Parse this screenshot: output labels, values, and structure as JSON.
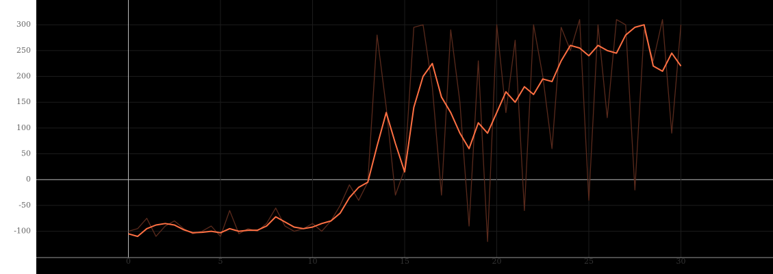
{
  "chart_data": {
    "type": "line",
    "x": [
      0,
      0.5,
      1,
      1.5,
      2,
      2.5,
      3,
      3.5,
      4,
      4.5,
      5,
      5.5,
      6,
      6.5,
      7,
      7.5,
      8,
      8.5,
      9,
      9.5,
      10,
      10.5,
      11,
      11.5,
      12,
      12.5,
      13,
      13.5,
      14,
      14.5,
      15,
      15.5,
      16,
      16.5,
      17,
      17.5,
      18,
      18.5,
      19,
      19.5,
      20,
      20.5,
      21,
      21.5,
      22,
      22.5,
      23,
      23.5,
      24,
      24.5,
      25,
      25.5,
      26,
      26.5,
      27,
      27.5,
      28,
      28.5,
      29,
      29.5,
      30
    ],
    "series": [
      {
        "color": "#5a2a1c",
        "values": [
          -100,
          -95,
          -75,
          -110,
          -90,
          -80,
          -95,
          -105,
          -100,
          -90,
          -110,
          -60,
          -105,
          -95,
          -100,
          -85,
          -55,
          -90,
          -100,
          -95,
          -85,
          -100,
          -80,
          -50,
          -10,
          -40,
          -5,
          280,
          140,
          -30,
          20,
          295,
          300,
          180,
          -30,
          290,
          150,
          -90,
          230,
          -120,
          300,
          130,
          270,
          -60,
          300,
          200,
          60,
          295,
          250,
          310,
          -40,
          300,
          120,
          310,
          300,
          -20,
          290,
          230,
          310,
          90,
          300
        ]
      },
      {
        "color": "#ff7043",
        "values": [
          -105,
          -110,
          -95,
          -88,
          -85,
          -88,
          -97,
          -103,
          -102,
          -100,
          -103,
          -95,
          -100,
          -98,
          -98,
          -90,
          -72,
          -82,
          -92,
          -95,
          -92,
          -85,
          -80,
          -65,
          -35,
          -15,
          -5,
          65,
          130,
          70,
          15,
          140,
          200,
          225,
          160,
          130,
          90,
          60,
          110,
          90,
          130,
          170,
          150,
          180,
          165,
          195,
          190,
          230,
          260,
          255,
          240,
          260,
          250,
          245,
          280,
          295,
          300,
          220,
          210,
          245,
          220
        ]
      }
    ],
    "xlim": [
      -5,
      35
    ],
    "ylim": [
      -151,
      348
    ],
    "xticks": [
      0,
      5,
      10,
      15,
      20,
      25,
      30
    ],
    "yticks": [
      -100,
      -50,
      0,
      50,
      100,
      150,
      200,
      250,
      300
    ],
    "grid": true
  }
}
